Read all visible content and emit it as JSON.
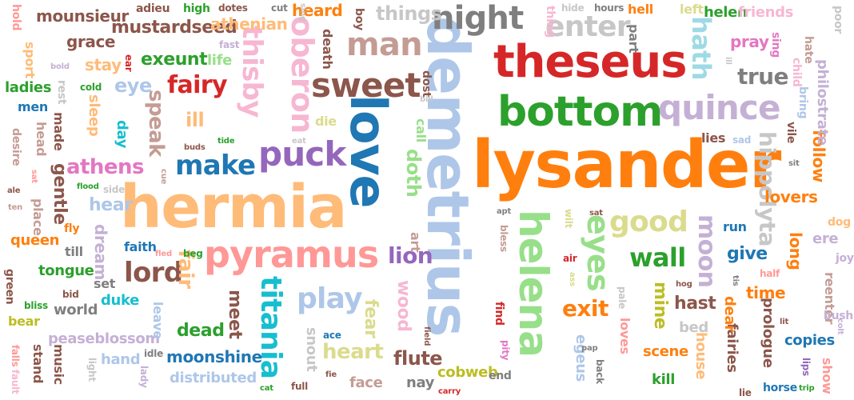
{
  "words": [
    {
      "text": "lysander",
      "color": "#ff7f0e"
    },
    {
      "text": "demetrius",
      "color": "#aec7e8"
    },
    {
      "text": "hermia",
      "color": "#ffbb78"
    },
    {
      "text": "love",
      "color": "#1f77b4"
    },
    {
      "text": "theseus",
      "color": "#d62728"
    },
    {
      "text": "bottom",
      "color": "#2ca02c"
    },
    {
      "text": "pyramus",
      "color": "#ff9896"
    },
    {
      "text": "helena",
      "color": "#98df8a"
    },
    {
      "text": "quince",
      "color": "#c5b0d5"
    },
    {
      "text": "oberon",
      "color": "#f7b6d2"
    },
    {
      "text": "sweet",
      "color": "#8c564b"
    },
    {
      "text": "puck",
      "color": "#9467bd"
    },
    {
      "text": "night",
      "color": "#7f7f7f"
    },
    {
      "text": "man",
      "color": "#c49c94"
    },
    {
      "text": "thisby",
      "color": "#f7b6d2"
    },
    {
      "text": "titania",
      "color": "#17becf"
    },
    {
      "text": "enter",
      "color": "#c7c7c7"
    },
    {
      "text": "make",
      "color": "#1f77b4"
    },
    {
      "text": "good",
      "color": "#dbdb8d"
    },
    {
      "text": "eyes",
      "color": "#98df8a"
    },
    {
      "text": "hath",
      "color": "#9edae5"
    },
    {
      "text": "fairy",
      "color": "#d62728"
    },
    {
      "text": "wall",
      "color": "#2ca02c"
    },
    {
      "text": "moon",
      "color": "#c5b0d5"
    },
    {
      "text": "hippolyta",
      "color": "#c7c7c7"
    },
    {
      "text": "true",
      "color": "#7f7f7f"
    },
    {
      "text": "play",
      "color": "#aec7e8"
    },
    {
      "text": "lord",
      "color": "#8c564b"
    },
    {
      "text": "lion",
      "color": "#9467bd"
    },
    {
      "text": "exit",
      "color": "#ff7f0e"
    },
    {
      "text": "athens",
      "color": "#e377c2"
    },
    {
      "text": "speak",
      "color": "#c49c94"
    },
    {
      "text": "fair",
      "color": "#ffbb78"
    },
    {
      "text": "doth",
      "color": "#98df8a"
    },
    {
      "text": "heart",
      "color": "#dbdb8d"
    },
    {
      "text": "flute",
      "color": "#8c564b"
    },
    {
      "text": "moonshine",
      "color": "#1f77b4"
    },
    {
      "text": "mine",
      "color": "#bcbd22"
    },
    {
      "text": "hast",
      "color": "#8c564b"
    },
    {
      "text": "give",
      "color": "#1f77b4"
    },
    {
      "text": "time",
      "color": "#ff7f0e"
    },
    {
      "text": "lovers",
      "color": "#ff7f0e"
    },
    {
      "text": "wood",
      "color": "#f7b6d2"
    },
    {
      "text": "fear",
      "color": "#dbdb8d"
    },
    {
      "text": "exeunt",
      "color": "#2ca02c"
    },
    {
      "text": "mustardseed",
      "color": "#8c564b"
    },
    {
      "text": "dead",
      "color": "#2ca02c"
    },
    {
      "text": "meet",
      "color": "#8c564b"
    },
    {
      "text": "gentle",
      "color": "#8c564b"
    },
    {
      "text": "long",
      "color": "#ff7f0e"
    },
    {
      "text": "follow",
      "color": "#ff7f0e"
    },
    {
      "text": "things",
      "color": "#c7c7c7"
    },
    {
      "text": "ill",
      "color": "#ffbb78"
    },
    {
      "text": "eye",
      "color": "#aec7e8"
    },
    {
      "text": "grace",
      "color": "#8c564b"
    },
    {
      "text": "stay",
      "color": "#ffbb78"
    },
    {
      "text": "mounsieur",
      "color": "#8c564b"
    },
    {
      "text": "athenian",
      "color": "#ffbb78"
    },
    {
      "text": "heard",
      "color": "#ff7f0e"
    },
    {
      "text": "helen",
      "color": "#2ca02c"
    },
    {
      "text": "friends",
      "color": "#f7b6d2"
    },
    {
      "text": "pray",
      "color": "#e377c2"
    },
    {
      "text": "philostrate",
      "color": "#c5b0d5"
    },
    {
      "text": "queen",
      "color": "#ff7f0e"
    },
    {
      "text": "tongue",
      "color": "#2ca02c"
    },
    {
      "text": "dream",
      "color": "#c5b0d5"
    },
    {
      "text": "hear",
      "color": "#aec7e8"
    },
    {
      "text": "duke",
      "color": "#17becf"
    },
    {
      "text": "world",
      "color": "#7f7f7f"
    },
    {
      "text": "peaseblossom",
      "color": "#c5b0d5"
    },
    {
      "text": "hand",
      "color": "#aec7e8"
    },
    {
      "text": "distributed",
      "color": "#aec7e8"
    },
    {
      "text": "snout",
      "color": "#c7c7c7"
    },
    {
      "text": "cobweb",
      "color": "#bcbd22"
    },
    {
      "text": "nay",
      "color": "#7f7f7f"
    },
    {
      "text": "face",
      "color": "#c49c94"
    },
    {
      "text": "scene",
      "color": "#ff7f0e"
    },
    {
      "text": "kill",
      "color": "#2ca02c"
    },
    {
      "text": "house",
      "color": "#ffbb78"
    },
    {
      "text": "fairies",
      "color": "#8c564b"
    },
    {
      "text": "prologue",
      "color": "#8c564b"
    },
    {
      "text": "copies",
      "color": "#1f77b4"
    },
    {
      "text": "dear",
      "color": "#ff7f0e"
    },
    {
      "text": "loves",
      "color": "#ff9896"
    },
    {
      "text": "egeus",
      "color": "#aec7e8"
    },
    {
      "text": "bed",
      "color": "#c7c7c7"
    },
    {
      "text": "ere",
      "color": "#c5b0d5"
    },
    {
      "text": "run",
      "color": "#1f77b4"
    },
    {
      "text": "reenter",
      "color": "#c49c94"
    },
    {
      "text": "music",
      "color": "#8c564b"
    },
    {
      "text": "stand",
      "color": "#8c564b"
    },
    {
      "text": "bear",
      "color": "#bcbd22"
    },
    {
      "text": "set",
      "color": "#7f7f7f"
    },
    {
      "text": "till",
      "color": "#7f7f7f"
    },
    {
      "text": "faith",
      "color": "#1f77b4"
    },
    {
      "text": "place",
      "color": "#c49c94"
    },
    {
      "text": "head",
      "color": "#c49c94"
    },
    {
      "text": "made",
      "color": "#8c564b"
    },
    {
      "text": "men",
      "color": "#1f77b4"
    },
    {
      "text": "ladies",
      "color": "#2ca02c"
    },
    {
      "text": "sport",
      "color": "#ffbb78"
    },
    {
      "text": "life",
      "color": "#98df8a"
    },
    {
      "text": "sleep",
      "color": "#ffbb78"
    },
    {
      "text": "day",
      "color": "#17becf"
    },
    {
      "text": "art",
      "color": "#c49c94"
    },
    {
      "text": "death",
      "color": "#8c564b"
    },
    {
      "text": "die",
      "color": "#dbdb8d"
    },
    {
      "text": "lies",
      "color": "#8c564b"
    },
    {
      "text": "part",
      "color": "#7f7f7f"
    },
    {
      "text": "left",
      "color": "#dbdb8d"
    },
    {
      "text": "hell",
      "color": "#ff7f0e"
    },
    {
      "text": "thing",
      "color": "#f7b6d2"
    },
    {
      "text": "sing",
      "color": "#e377c2"
    },
    {
      "text": "child",
      "color": "#f7b6d2"
    },
    {
      "text": "show",
      "color": "#ff9896"
    },
    {
      "text": "joy",
      "color": "#c5b0d5"
    },
    {
      "text": "bush",
      "color": "#c5b0d5"
    },
    {
      "text": "horse",
      "color": "#1f77b4"
    },
    {
      "text": "poor",
      "color": "#c7c7c7"
    },
    {
      "text": "hate",
      "color": "#c49c94"
    },
    {
      "text": "vile",
      "color": "#8c564b"
    },
    {
      "text": "dog",
      "color": "#ffbb78"
    },
    {
      "text": "green",
      "color": "#8c564b"
    },
    {
      "text": "bliss",
      "color": "#2ca02c"
    },
    {
      "text": "fly",
      "color": "#ff7f0e"
    },
    {
      "text": "adieu",
      "color": "#8c564b"
    },
    {
      "text": "high",
      "color": "#2ca02c"
    },
    {
      "text": "dotes",
      "color": "#8c564b"
    },
    {
      "text": "cut",
      "color": "#7f7f7f"
    },
    {
      "text": "hours",
      "color": "#7f7f7f"
    },
    {
      "text": "hide",
      "color": "#c7c7c7"
    },
    {
      "text": "boy",
      "color": "#8c564b"
    },
    {
      "text": "fast",
      "color": "#c5b0d5"
    },
    {
      "text": "hold",
      "color": "#ff9896"
    },
    {
      "text": "bold",
      "color": "#c5b0d5"
    },
    {
      "text": "ear",
      "color": "#d62728"
    },
    {
      "text": "cold",
      "color": "#2ca02c"
    },
    {
      "text": "rest",
      "color": "#c7c7c7"
    },
    {
      "text": "desire",
      "color": "#c49c94"
    },
    {
      "text": "ten",
      "color": "#c49c94"
    },
    {
      "text": "ale",
      "color": "#8c564b"
    },
    {
      "text": "sat",
      "color": "#ff9896"
    },
    {
      "text": "flood",
      "color": "#2ca02c"
    },
    {
      "text": "side",
      "color": "#c7c7c7"
    },
    {
      "text": "beg",
      "color": "#2ca02c"
    },
    {
      "text": "fled",
      "color": "#ff9896"
    },
    {
      "text": "bid",
      "color": "#8c564b"
    },
    {
      "text": "idle",
      "color": "#7f7f7f"
    },
    {
      "text": "light",
      "color": "#c7c7c7"
    },
    {
      "text": "lady",
      "color": "#c5b0d5"
    },
    {
      "text": "tide",
      "color": "#2ca02c"
    },
    {
      "text": "buds",
      "color": "#8c564b"
    },
    {
      "text": "ace",
      "color": "#1f77b4"
    },
    {
      "text": "fie",
      "color": "#8c564b"
    },
    {
      "text": "full",
      "color": "#8c564b"
    },
    {
      "text": "cat",
      "color": "#2ca02c"
    },
    {
      "text": "find",
      "color": "#d62728"
    },
    {
      "text": "pity",
      "color": "#e377c2"
    },
    {
      "text": "end",
      "color": "#7f7f7f"
    },
    {
      "text": "carry",
      "color": "#d62728"
    },
    {
      "text": "back",
      "color": "#7f7f7f"
    },
    {
      "text": "pap",
      "color": "#7f7f7f"
    },
    {
      "text": "leave",
      "color": "#aec7e8"
    },
    {
      "text": "pale",
      "color": "#c7c7c7"
    },
    {
      "text": "hog",
      "color": "#8c564b"
    },
    {
      "text": "half",
      "color": "#ff9896"
    },
    {
      "text": "tis",
      "color": "#7f7f7f"
    },
    {
      "text": "lie",
      "color": "#8c564b"
    },
    {
      "text": "trip",
      "color": "#2ca02c"
    },
    {
      "text": "lips",
      "color": "#9467bd"
    },
    {
      "text": "fault",
      "color": "#f7b6d2"
    },
    {
      "text": "falls",
      "color": "#ff9896"
    },
    {
      "text": "sad",
      "color": "#aec7e8"
    },
    {
      "text": "sit",
      "color": "#7f7f7f"
    },
    {
      "text": "bring",
      "color": "#aec7e8"
    },
    {
      "text": "apt",
      "color": "#7f7f7f"
    },
    {
      "text": "bless",
      "color": "#c49c94"
    },
    {
      "text": "wilt",
      "color": "#dbdb8d"
    },
    {
      "text": "ass",
      "color": "#dbdb8d"
    },
    {
      "text": "air",
      "color": "#d62728"
    },
    {
      "text": "call",
      "color": "#98df8a"
    },
    {
      "text": "dost",
      "color": "#8c564b"
    },
    {
      "text": "bill",
      "color": "#c7c7c7"
    },
    {
      "text": "field",
      "color": "#8c564b"
    },
    {
      "text": "cue",
      "color": "#c49c94"
    },
    {
      "text": "eat",
      "color": "#c7c7c7"
    },
    {
      "text": "sing",
      "color": "#c7c7c7"
    },
    {
      "text": "colt",
      "color": "#c5b0d5"
    },
    {
      "text": "ill",
      "color": "#c7c7c7"
    },
    {
      "text": "lit",
      "color": "#8c564b"
    },
    {
      "text": "sat",
      "color": "#8c564b"
    }
  ]
}
